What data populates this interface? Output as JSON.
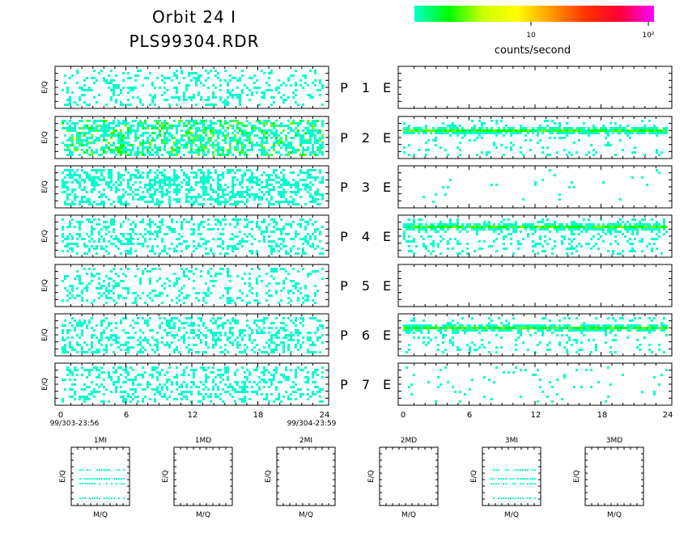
{
  "header": {
    "title_line1": "Orbit 24 I",
    "title_line2": "PLS99304.RDR"
  },
  "colorbar": {
    "colors": [
      "#00ffcc",
      "#00ff00",
      "#ccff00",
      "#ffff00",
      "#ff9900",
      "#ff3300",
      "#ff0033",
      "#ff00ff"
    ],
    "tick_labels": [
      "10",
      "10²"
    ],
    "label": "counts/second"
  },
  "chart_data": [
    {
      "type": "heatmap",
      "panels_left_ylabel": "E/Q",
      "time_axis": {
        "left_ticks": [
          "0",
          "6",
          "12",
          "18",
          "24"
        ],
        "right_ticks": [
          "0",
          "6",
          "12",
          "18",
          "24"
        ],
        "xlim": [
          0,
          24
        ],
        "start_label": "99/303-23:56",
        "end_label": "99/304-23:59"
      },
      "rows": [
        {
          "p_label": "P",
          "number": "1",
          "e_label": "E",
          "left_density": 0.22,
          "left_green": 0.0,
          "right_band": null,
          "right_density": 0.0
        },
        {
          "p_label": "P",
          "number": "2",
          "e_label": "E",
          "left_density": 0.55,
          "left_green": 0.25,
          "right_band": 0.3,
          "right_density": 0.12
        },
        {
          "p_label": "P",
          "number": "3",
          "e_label": "E",
          "left_density": 0.45,
          "left_green": 0.0,
          "right_band": null,
          "right_density": 0.01
        },
        {
          "p_label": "P",
          "number": "4",
          "e_label": "E",
          "left_density": 0.3,
          "left_green": 0.0,
          "right_band": 0.25,
          "right_density": 0.18
        },
        {
          "p_label": "P",
          "number": "5",
          "e_label": "E",
          "left_density": 0.2,
          "left_green": 0.0,
          "right_band": null,
          "right_density": 0.0
        },
        {
          "p_label": "P",
          "number": "6",
          "e_label": "E",
          "left_density": 0.32,
          "left_green": 0.0,
          "right_band": 0.3,
          "right_density": 0.14
        },
        {
          "p_label": "P",
          "number": "7",
          "e_label": "E",
          "left_density": 0.3,
          "left_green": 0.0,
          "right_band": null,
          "right_density": 0.03
        }
      ]
    },
    {
      "type": "scatter",
      "xlabel": "M/Q",
      "ylabel": "E/Q",
      "panels": [
        {
          "title": "1MI",
          "has_data": true
        },
        {
          "title": "1MD",
          "has_data": false
        },
        {
          "title": "2MI",
          "has_data": false
        },
        {
          "title": "2MD",
          "has_data": false
        },
        {
          "title": "3MI",
          "has_data": true
        },
        {
          "title": "3MD",
          "has_data": false
        }
      ]
    }
  ]
}
